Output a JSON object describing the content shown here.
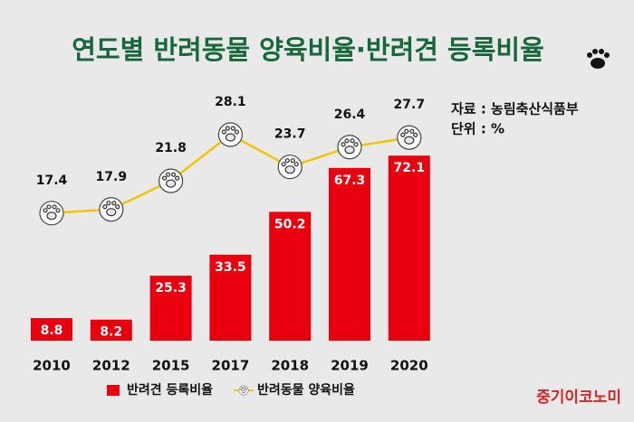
{
  "chart_data": {
    "type": "bar-line",
    "title": "연도별 반려동물 양육비율·반려견 등록비율",
    "source": "자료 : 농림축산식품부",
    "unit": "단위 : %",
    "brand": "중기이코노미",
    "categories": [
      "2010",
      "2012",
      "2015",
      "2017",
      "2018",
      "2019",
      "2020"
    ],
    "series": [
      {
        "name": "반려견 등록비율",
        "type": "bar",
        "color": "#e8000e",
        "values": [
          8.8,
          8.2,
          25.3,
          33.5,
          50.2,
          67.3,
          72.1
        ]
      },
      {
        "name": "반려동물 양육비율",
        "type": "line",
        "axis": "y2",
        "color": "#f5c400",
        "values": [
          17.4,
          17.9,
          21.8,
          28.1,
          23.7,
          26.4,
          27.7
        ]
      }
    ],
    "ylim": [
      0,
      100
    ],
    "y2lim": [
      0,
      35
    ],
    "legend": "bottom"
  }
}
